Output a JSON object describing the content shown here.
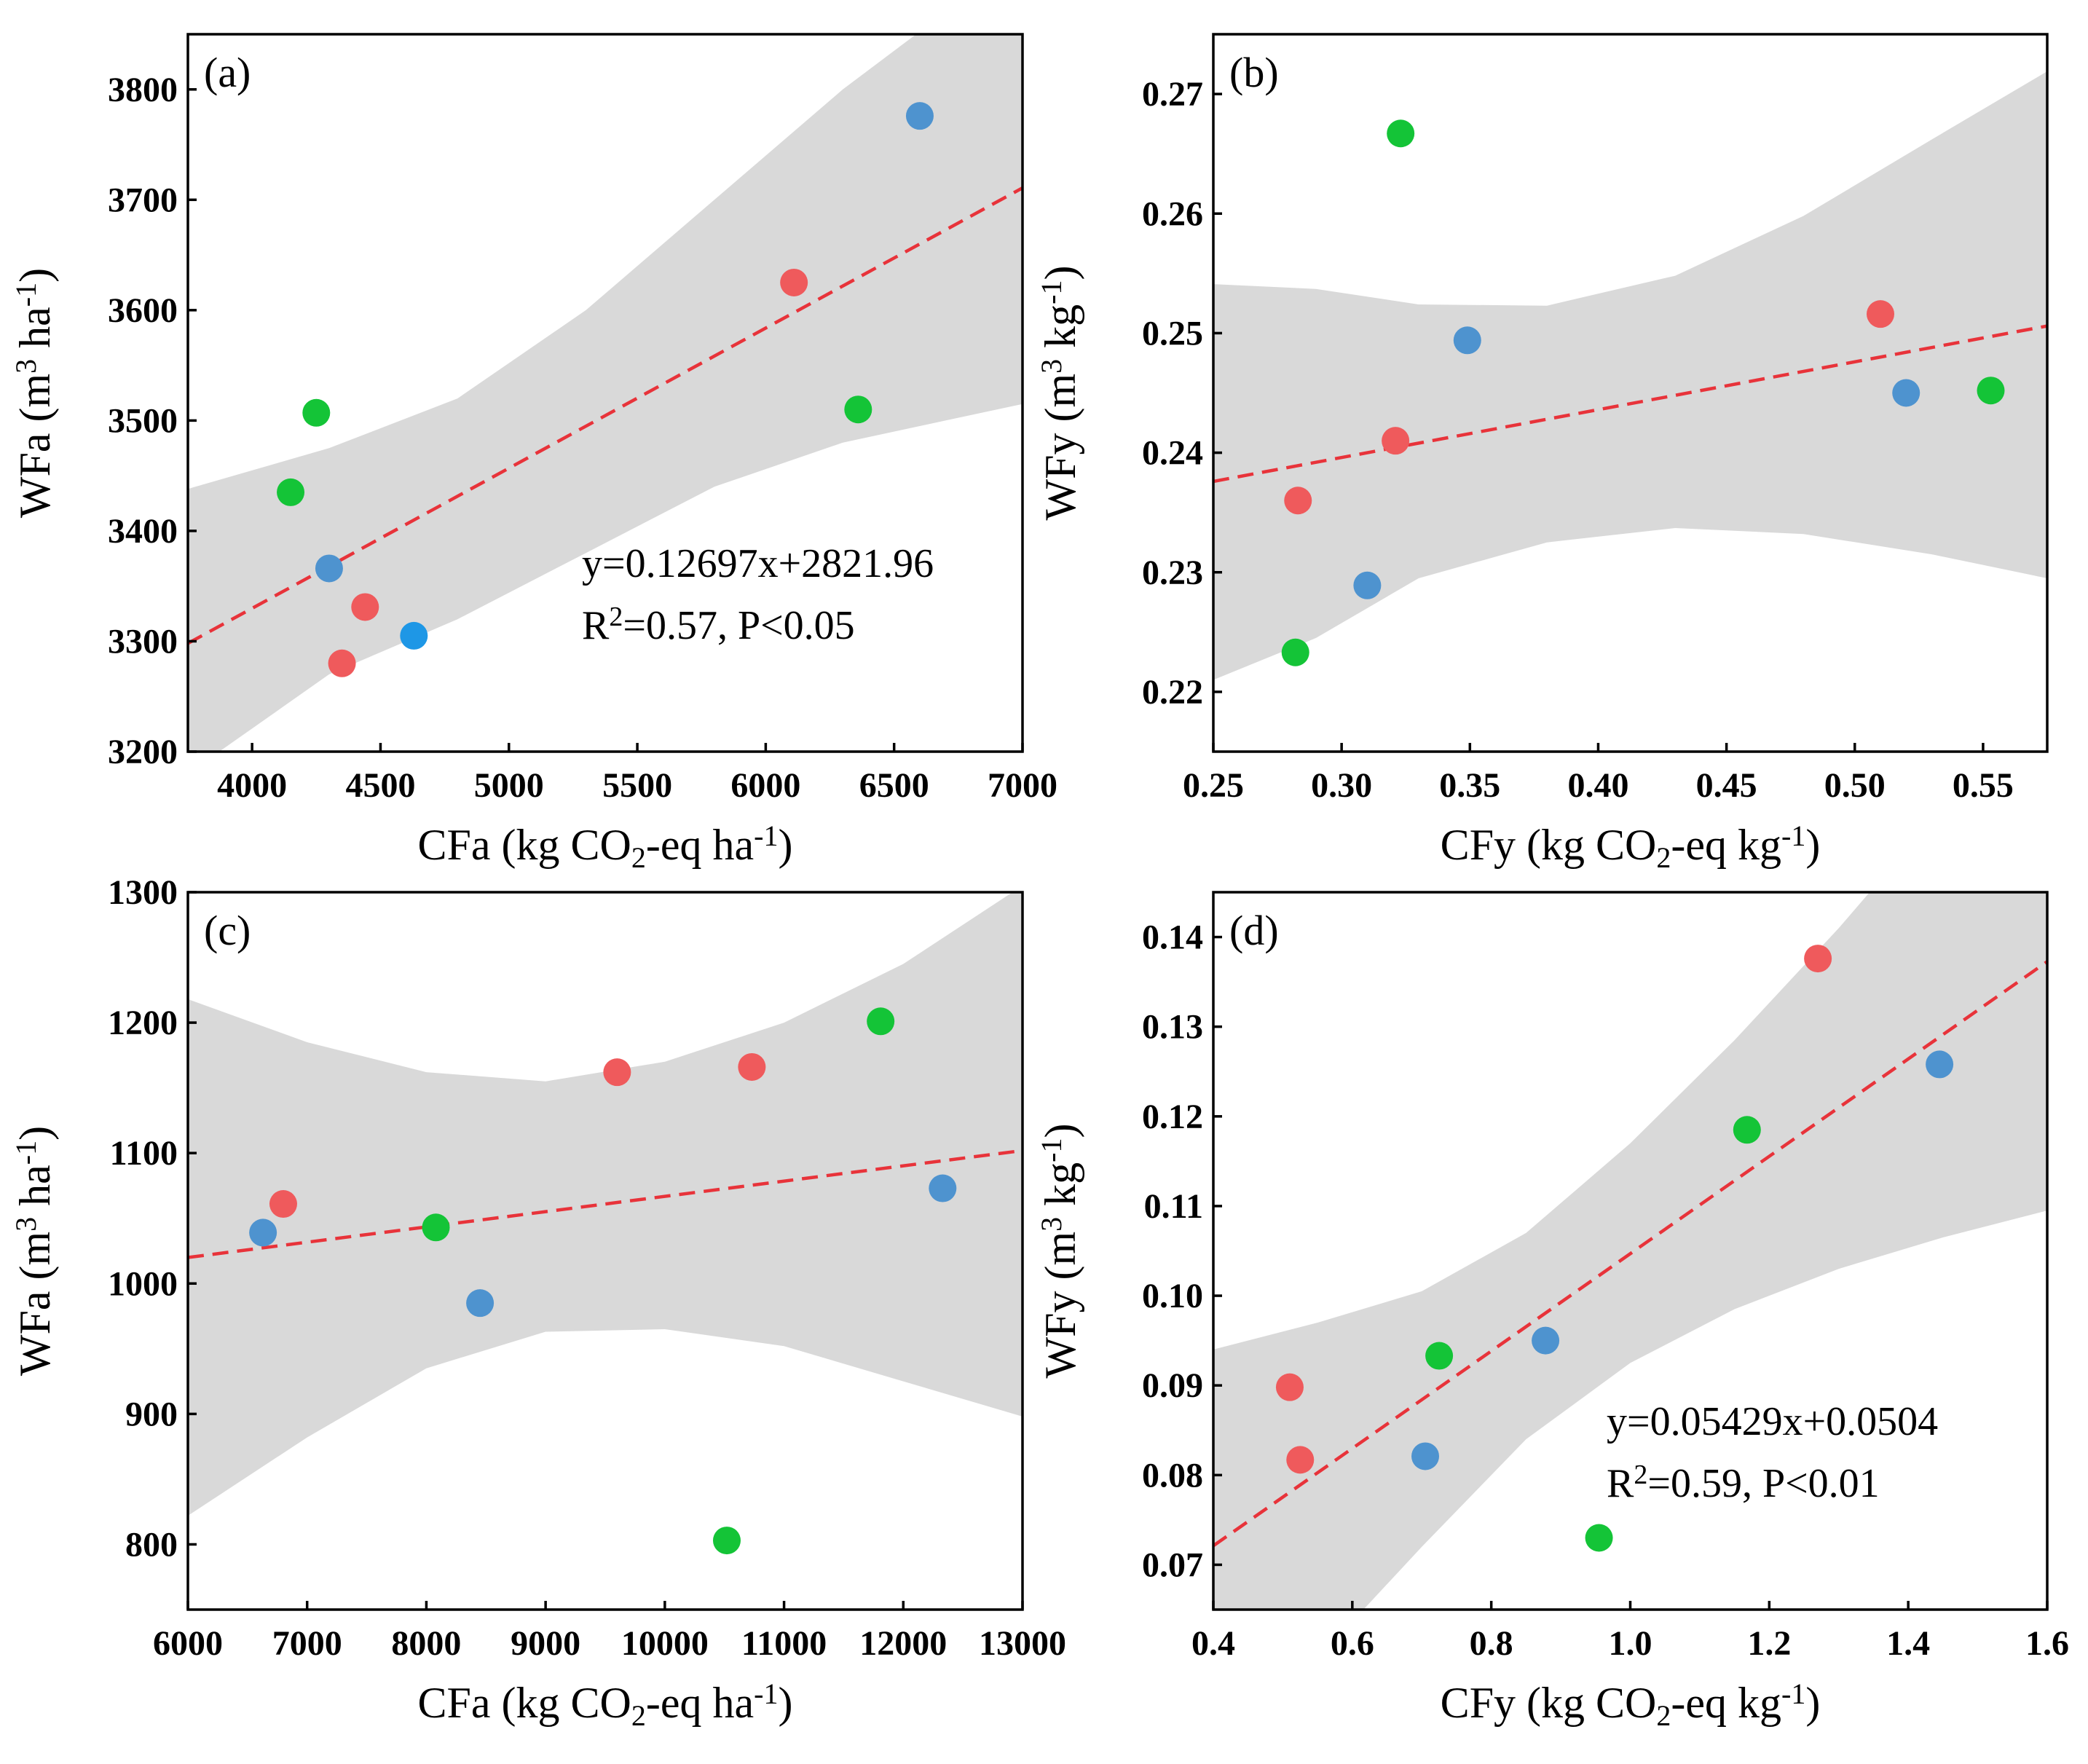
{
  "colors": {
    "red": "#ef5a5c",
    "green": "#14c437",
    "blue": "#4e93cf",
    "bright_blue": "#1e97e6",
    "fit_line": "#e8333a",
    "band": "#d9d9d9"
  },
  "chart_data": [
    {
      "id": "a",
      "type": "scatter",
      "panel_label": "(a)",
      "xlabel": {
        "pre": "CFa (kg CO",
        "sub": "2",
        "post": "-eq ha",
        "sup": "-1",
        "close": ")"
      },
      "ylabel": {
        "pre": "WFa (m",
        "sup1": "3",
        "mid": " ha",
        "sup2": "-1",
        "close": ")"
      },
      "xlim": [
        3750,
        7000
      ],
      "ylim": [
        3200,
        3850
      ],
      "xticks": [
        4000,
        4500,
        5000,
        5500,
        6000,
        6500,
        7000
      ],
      "xtick_labels": [
        "4000",
        "4500",
        "5000",
        "5500",
        "6000",
        "6500",
        "7000"
      ],
      "yticks": [
        3200,
        3300,
        3400,
        3500,
        3600,
        3700,
        3800
      ],
      "ytick_labels": [
        "3200",
        "3300",
        "3400",
        "3500",
        "3600",
        "3700",
        "3800"
      ],
      "points": [
        {
          "x": 4150,
          "y": 3435,
          "color": "green"
        },
        {
          "x": 4250,
          "y": 3507,
          "color": "green"
        },
        {
          "x": 4300,
          "y": 3366,
          "color": "blue"
        },
        {
          "x": 4350,
          "y": 3280,
          "color": "red"
        },
        {
          "x": 4440,
          "y": 3331,
          "color": "red"
        },
        {
          "x": 4630,
          "y": 3305,
          "color": "bright_blue"
        },
        {
          "x": 6110,
          "y": 3625,
          "color": "red"
        },
        {
          "x": 6360,
          "y": 3510,
          "color": "green"
        },
        {
          "x": 6600,
          "y": 3776,
          "color": "blue"
        }
      ],
      "fit": {
        "slope": 0.12697,
        "intercept": 2821.96,
        "x_range": [
          3750,
          7000
        ]
      },
      "band": {
        "x": [
          3750,
          4300,
          4800,
          5300,
          5800,
          6300,
          6700,
          7000
        ],
        "lower": [
          3180,
          3270,
          3320,
          3380,
          3440,
          3480,
          3500,
          3515
        ],
        "upper": [
          3438,
          3475,
          3520,
          3600,
          3700,
          3800,
          3870,
          3930
        ]
      },
      "equation": "y=0.12697x+2821.96",
      "stats": {
        "r": "R",
        "sup": "2",
        "rest": "=0.57, P<0.05"
      },
      "equation_position": "bottom-right"
    },
    {
      "id": "b",
      "type": "scatter",
      "panel_label": "(b)",
      "xlabel": {
        "pre": "CFy (kg CO",
        "sub": "2",
        "post": "-eq kg",
        "sup": "-1",
        "close": ")"
      },
      "ylabel": {
        "pre": "WFy (m",
        "sup1": "3",
        "mid": " kg",
        "sup2": "-1",
        "close": ")"
      },
      "xlim": [
        0.25,
        0.575
      ],
      "ylim": [
        0.215,
        0.275
      ],
      "xticks": [
        0.25,
        0.3,
        0.35,
        0.4,
        0.45,
        0.5,
        0.55
      ],
      "xtick_labels": [
        "0.25",
        "0.30",
        "0.35",
        "0.40",
        "0.45",
        "0.50",
        "0.55"
      ],
      "yticks": [
        0.22,
        0.23,
        0.24,
        0.25,
        0.26,
        0.27
      ],
      "ytick_labels": [
        "0.22",
        "0.23",
        "0.24",
        "0.25",
        "0.26",
        "0.27"
      ],
      "points": [
        {
          "x": 0.282,
          "y": 0.2233,
          "color": "green"
        },
        {
          "x": 0.283,
          "y": 0.236,
          "color": "red"
        },
        {
          "x": 0.31,
          "y": 0.2289,
          "color": "blue"
        },
        {
          "x": 0.321,
          "y": 0.241,
          "color": "red"
        },
        {
          "x": 0.323,
          "y": 0.2667,
          "color": "green"
        },
        {
          "x": 0.349,
          "y": 0.2494,
          "color": "blue"
        },
        {
          "x": 0.51,
          "y": 0.2516,
          "color": "red"
        },
        {
          "x": 0.52,
          "y": 0.245,
          "color": "blue"
        },
        {
          "x": 0.553,
          "y": 0.2452,
          "color": "green"
        }
      ],
      "fit": {
        "slope": 0.04,
        "intercept": 0.2276,
        "x_range": [
          0.25,
          0.575
        ]
      },
      "band": {
        "x": [
          0.25,
          0.29,
          0.33,
          0.38,
          0.43,
          0.48,
          0.53,
          0.575
        ],
        "lower": [
          0.221,
          0.2245,
          0.2295,
          0.2325,
          0.2337,
          0.2332,
          0.2315,
          0.2295
        ],
        "upper": [
          0.2541,
          0.2537,
          0.2524,
          0.2523,
          0.2548,
          0.2598,
          0.2662,
          0.2719
        ]
      },
      "equation": "",
      "stats": null,
      "equation_position": ""
    },
    {
      "id": "c",
      "type": "scatter",
      "panel_label": "(c)",
      "xlabel": {
        "pre": "CFa (kg CO",
        "sub": "2",
        "post": "-eq ha",
        "sup": "-1",
        "close": ")"
      },
      "ylabel": {
        "pre": "WFa (m",
        "sup1": "3",
        "mid": " ha",
        "sup2": "-1",
        "close": ")"
      },
      "xlim": [
        6000,
        13000
      ],
      "ylim": [
        750,
        1300
      ],
      "xticks": [
        6000,
        7000,
        8000,
        9000,
        10000,
        11000,
        12000,
        13000
      ],
      "xtick_labels": [
        "6000",
        "7000",
        "8000",
        "9000",
        "10000",
        "11000",
        "12000",
        "13000"
      ],
      "yticks": [
        800,
        900,
        1000,
        1100,
        1200,
        1300
      ],
      "ytick_labels": [
        "800",
        "900",
        "1000",
        "1100",
        "1200",
        "1300"
      ],
      "points": [
        {
          "x": 6630,
          "y": 1039,
          "color": "blue"
        },
        {
          "x": 6800,
          "y": 1061,
          "color": "red"
        },
        {
          "x": 8080,
          "y": 1043,
          "color": "green"
        },
        {
          "x": 8450,
          "y": 985,
          "color": "blue"
        },
        {
          "x": 9600,
          "y": 1162,
          "color": "red"
        },
        {
          "x": 10520,
          "y": 803,
          "color": "green"
        },
        {
          "x": 10730,
          "y": 1166,
          "color": "red"
        },
        {
          "x": 11810,
          "y": 1201,
          "color": "green"
        },
        {
          "x": 12330,
          "y": 1073,
          "color": "blue"
        }
      ],
      "fit": {
        "slope": 0.01171,
        "intercept": 949.7,
        "x_range": [
          6000,
          13000
        ]
      },
      "band": {
        "x": [
          6000,
          7000,
          8000,
          9000,
          10000,
          11000,
          12000,
          13000
        ],
        "lower": [
          822,
          882,
          935,
          963,
          965,
          952,
          925,
          898
        ],
        "upper": [
          1218,
          1185,
          1162,
          1155,
          1170,
          1200,
          1245,
          1305
        ]
      },
      "equation": "",
      "stats": null,
      "equation_position": ""
    },
    {
      "id": "d",
      "type": "scatter",
      "panel_label": "(d)",
      "xlabel": {
        "pre": "CFy (kg CO",
        "sub": "2",
        "post": "-eq kg",
        "sup": "-1",
        "close": ")"
      },
      "ylabel": {
        "pre": "WFy (m",
        "sup1": "3",
        "mid": " kg",
        "sup2": "-1",
        "close": ")"
      },
      "xlim": [
        0.4,
        1.6
      ],
      "ylim": [
        0.065,
        0.145
      ],
      "xticks": [
        0.4,
        0.6,
        0.8,
        1.0,
        1.2,
        1.4,
        1.6
      ],
      "xtick_labels": [
        "0.4",
        "0.6",
        "0.8",
        "1.0",
        "1.2",
        "1.4",
        "1.6"
      ],
      "yticks": [
        0.07,
        0.08,
        0.09,
        0.1,
        0.11,
        0.12,
        0.13,
        0.14
      ],
      "ytick_labels": [
        "0.07",
        "0.08",
        "0.09",
        "0.10",
        "0.11",
        "0.12",
        "0.13",
        "0.14"
      ],
      "points": [
        {
          "x": 0.51,
          "y": 0.0898,
          "color": "red"
        },
        {
          "x": 0.525,
          "y": 0.0817,
          "color": "red"
        },
        {
          "x": 0.705,
          "y": 0.0821,
          "color": "blue"
        },
        {
          "x": 0.725,
          "y": 0.0933,
          "color": "green"
        },
        {
          "x": 0.878,
          "y": 0.095,
          "color": "blue"
        },
        {
          "x": 0.955,
          "y": 0.073,
          "color": "green"
        },
        {
          "x": 1.168,
          "y": 0.1185,
          "color": "green"
        },
        {
          "x": 1.27,
          "y": 0.1376,
          "color": "red"
        },
        {
          "x": 1.445,
          "y": 0.1258,
          "color": "blue"
        }
      ],
      "fit": {
        "slope": 0.05429,
        "intercept": 0.0504,
        "x_range": [
          0.4,
          1.6
        ]
      },
      "band": {
        "x": [
          0.4,
          0.55,
          0.7,
          0.85,
          1.0,
          1.15,
          1.3,
          1.45,
          1.6
        ],
        "lower": [
          0.0505,
          0.0595,
          0.072,
          0.084,
          0.0925,
          0.0985,
          0.103,
          0.1065,
          0.1095
        ],
        "upper": [
          0.094,
          0.097,
          0.1005,
          0.107,
          0.117,
          0.1285,
          0.141,
          0.1545,
          0.168
        ]
      },
      "equation": "y=0.05429x+0.0504",
      "stats": {
        "r": "R",
        "sup": "2",
        "rest": "=0.59, P<0.01"
      },
      "equation_position": "bottom-right"
    }
  ]
}
